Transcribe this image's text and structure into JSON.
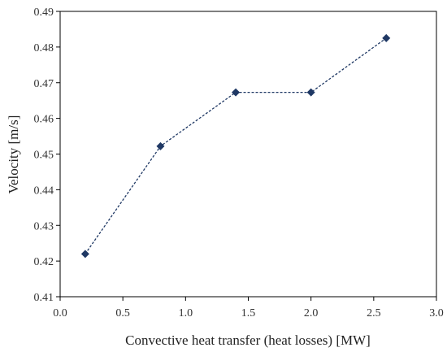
{
  "chart_data": {
    "type": "line",
    "title": "",
    "xlabel": "Convective heat transfer (heat losses) [MW]",
    "ylabel": "Velocity [m/s]",
    "xlim": [
      0.0,
      3.0
    ],
    "ylim": [
      0.41,
      0.49
    ],
    "xticks": [
      "0.0",
      "0.5",
      "1.0",
      "1.5",
      "2.0",
      "2.5",
      "3.0"
    ],
    "yticks": [
      "0.41",
      "0.42",
      "0.43",
      "0.44",
      "0.45",
      "0.46",
      "0.47",
      "0.48",
      "0.49"
    ],
    "grid": false,
    "legend": "none",
    "series": [
      {
        "x": [
          0.2,
          0.8,
          1.4,
          2.0,
          2.6
        ],
        "y": [
          0.422,
          0.4522,
          0.4673,
          0.4673,
          0.4825
        ],
        "color": "#1f3864",
        "line_style": "dashed",
        "marker": "diamond"
      }
    ]
  }
}
